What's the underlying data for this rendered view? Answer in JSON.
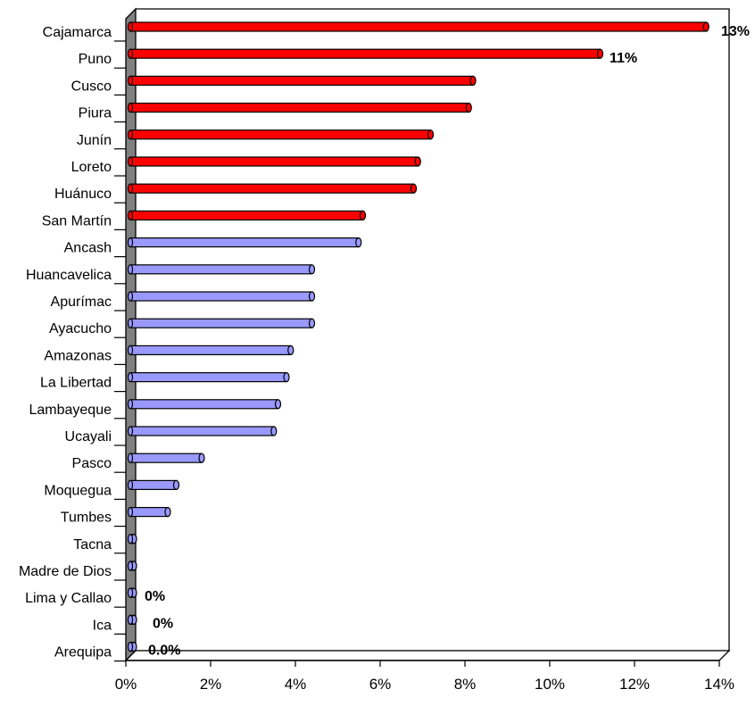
{
  "chart_data": {
    "type": "bar",
    "orientation": "horizontal",
    "title": "",
    "xlabel": "",
    "ylabel": "",
    "xlim": [
      0,
      0.14
    ],
    "x_ticks": [
      "0%",
      "2%",
      "4%",
      "6%",
      "8%",
      "10%",
      "12%",
      "14%"
    ],
    "grid": false,
    "legend": "none",
    "colors": {
      "highlight": "#ff0000",
      "normal": "#9999ff",
      "wall": "#808080"
    },
    "categories": [
      "Cajamarca",
      "Puno",
      "Cusco",
      "Piura",
      "Junín",
      "Loreto",
      "Huánuco",
      "San Martín",
      "Ancash",
      "Huancavelica",
      "Apurímac",
      "Ayacucho",
      "Amazonas",
      "La Libertad",
      "Lambayeque",
      "Ucayali",
      "Pasco",
      "Moquegua",
      "Tumbes",
      "Tacna",
      "Madre de Dios",
      "Lima y Callao",
      "Ica",
      "Arequipa"
    ],
    "values": [
      0.135,
      0.11,
      0.08,
      0.079,
      0.07,
      0.067,
      0.066,
      0.054,
      0.053,
      0.042,
      0.042,
      0.042,
      0.037,
      0.036,
      0.034,
      0.033,
      0.016,
      0.01,
      0.008,
      0.0,
      0.0,
      0.0,
      0.0,
      0.0
    ],
    "highlighted": [
      true,
      true,
      true,
      true,
      true,
      true,
      true,
      true,
      false,
      false,
      false,
      false,
      false,
      false,
      false,
      false,
      false,
      false,
      false,
      false,
      false,
      false,
      false,
      false
    ],
    "data_labels": [
      {
        "category": "Cajamarca",
        "text": "13%"
      },
      {
        "category": "Puno",
        "text": "11%"
      },
      {
        "category": "Lima y Callao",
        "text": "0%"
      },
      {
        "category": "Ica",
        "text": "0%"
      },
      {
        "category": "Arequipa",
        "text": "0.0%"
      }
    ]
  }
}
